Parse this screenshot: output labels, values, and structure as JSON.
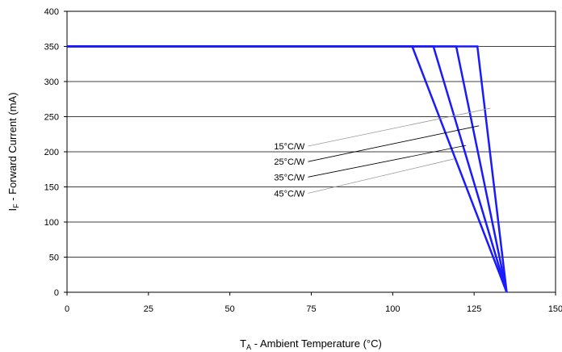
{
  "chart_data": {
    "type": "line",
    "xlabel_main": "T",
    "xlabel_sub": "A",
    "xlabel_rest": " - Ambient Temperature (°C)",
    "ylabel_main": "I",
    "ylabel_sub": "F",
    "ylabel_rest": " - Forward Current (mA)",
    "xlim": [
      0,
      150
    ],
    "ylim": [
      0,
      400
    ],
    "xticks": [
      0,
      25,
      50,
      75,
      100,
      125,
      150
    ],
    "yticks": [
      0,
      50,
      100,
      150,
      200,
      250,
      300,
      350,
      400
    ],
    "grid": "horizontal",
    "line_color": "#1a1aff",
    "series": [
      {
        "name": "15°C/W",
        "x": [
          0,
          126,
          135
        ],
        "y": [
          350,
          350,
          0
        ]
      },
      {
        "name": "25°C/W",
        "x": [
          0,
          119.5,
          135
        ],
        "y": [
          350,
          350,
          0
        ]
      },
      {
        "name": "35°C/W",
        "x": [
          0,
          112.5,
          135
        ],
        "y": [
          350,
          350,
          0
        ]
      },
      {
        "name": "45°C/W",
        "x": [
          0,
          106,
          135
        ],
        "y": [
          350,
          350,
          0
        ]
      }
    ],
    "annotations": [
      {
        "text": "15°C/W",
        "label_x": 73.5,
        "label_y": 208,
        "target_x": 130,
        "target_y": 262,
        "leader_color": "#999999"
      },
      {
        "text": "25°C/W",
        "label_x": 73.5,
        "label_y": 186,
        "target_x": 126.5,
        "target_y": 237,
        "leader_color": "#000000"
      },
      {
        "text": "35°C/W",
        "label_x": 73.5,
        "label_y": 164,
        "target_x": 122.5,
        "target_y": 209,
        "leader_color": "#000000"
      },
      {
        "text": "45°C/W",
        "label_x": 73.5,
        "label_y": 141,
        "target_x": 119,
        "target_y": 190,
        "leader_color": "#999999"
      }
    ]
  }
}
